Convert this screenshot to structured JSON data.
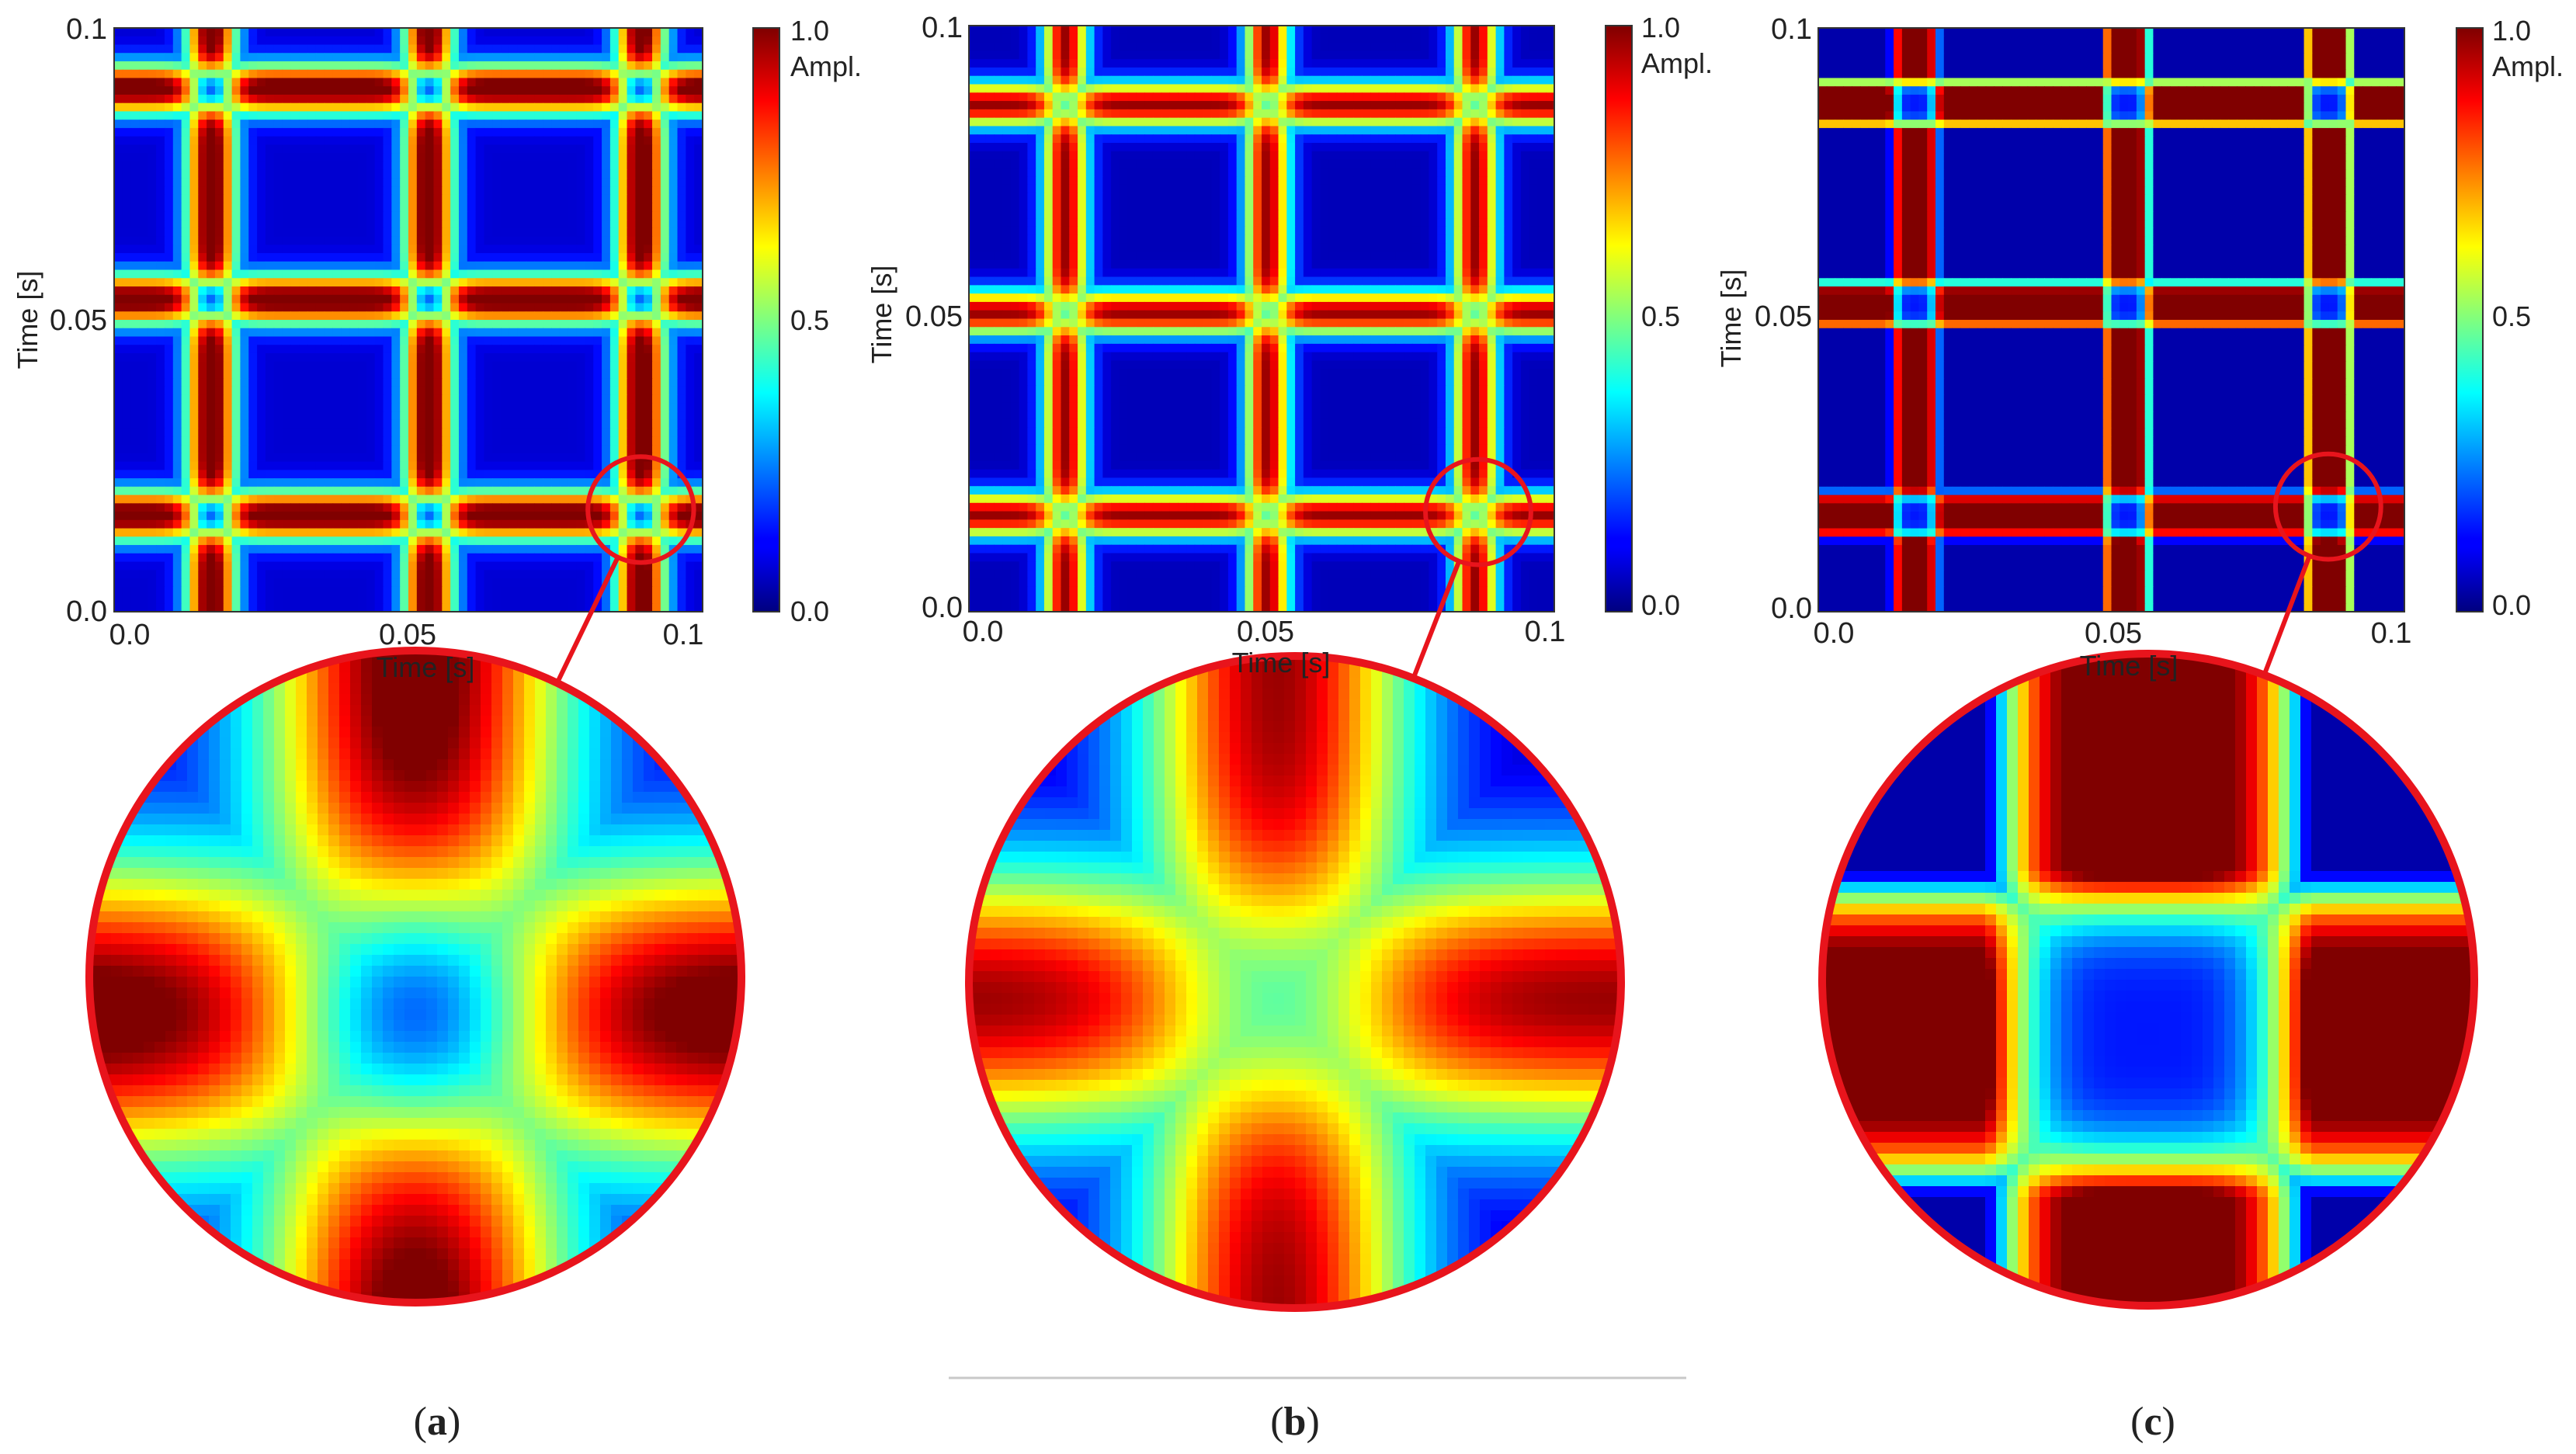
{
  "chart_data": [
    {
      "type": "heatmap",
      "panel_label": "a",
      "variant": "symmetric-cross",
      "xlabel": "Time [s]",
      "ylabel": "Time [s]",
      "xlim": [
        0.0,
        0.1
      ],
      "ylim": [
        0.0,
        0.1
      ],
      "x_tick_labels": [
        "0.0",
        "0.05",
        "0.1"
      ],
      "y_tick_labels": [
        "0.0",
        "0.05",
        "0.1"
      ],
      "band_centers_s": [
        0.0165,
        0.0535,
        0.0895
      ],
      "band_half_width_s": 0.0045,
      "colorbar": {
        "label": "Ampl.",
        "ticks": [
          "1.0",
          "0.5",
          "0.0"
        ],
        "range": [
          0.0,
          1.0
        ],
        "colormap": "jet"
      },
      "zoom_region": {
        "center_s": [
          0.0895,
          0.0175
        ],
        "radius_s": 0.009
      }
    },
    {
      "type": "heatmap",
      "panel_label": "b",
      "variant": "soft-bands",
      "xlabel": "Time [s]",
      "ylabel": "Time [s]",
      "xlim": [
        0.0,
        0.1
      ],
      "ylim": [
        0.0,
        0.1
      ],
      "x_tick_labels": [
        "0.0",
        "0.05",
        "0.1"
      ],
      "y_tick_labels": [
        "0.0",
        "0.05",
        "0.1"
      ],
      "band_centers_s": [
        0.0165,
        0.051,
        0.0865
      ],
      "band_half_width_s": 0.004,
      "colorbar": {
        "label": "Ampl.",
        "ticks": [
          "1.0",
          "0.5",
          "0.0"
        ],
        "range": [
          0.0,
          1.0
        ],
        "colormap": "jet"
      },
      "zoom_region": {
        "center_s": [
          0.087,
          0.017
        ],
        "radius_s": 0.009
      }
    },
    {
      "type": "heatmap",
      "panel_label": "c",
      "variant": "sharp-bands",
      "xlabel": "Time [s]",
      "ylabel": "Time [s]",
      "xlim": [
        0.0,
        0.1
      ],
      "ylim": [
        0.0,
        0.1
      ],
      "x_tick_labels": [
        "0.0",
        "0.05",
        "0.1"
      ],
      "y_tick_labels": [
        "0.0",
        "0.05",
        "0.1"
      ],
      "band_centers_s": [
        0.0165,
        0.0525,
        0.087
      ],
      "band_half_width_s": 0.0045,
      "colorbar": {
        "label": "Ampl.",
        "ticks": [
          "1.0",
          "0.5",
          "0.0"
        ],
        "range": [
          0.0,
          1.0
        ],
        "colormap": "jet"
      },
      "zoom_region": {
        "center_s": [
          0.087,
          0.018
        ],
        "radius_s": 0.009
      }
    }
  ],
  "captions": [
    {
      "open": "(",
      "letter": "a",
      "close": ")"
    },
    {
      "open": "(",
      "letter": "b",
      "close": ")"
    },
    {
      "open": "(",
      "letter": "c",
      "close": ")"
    }
  ],
  "colors": {
    "highlight_circle": "#e8141c",
    "divider_line": "#c8c8c8",
    "background": "#ffffff"
  }
}
